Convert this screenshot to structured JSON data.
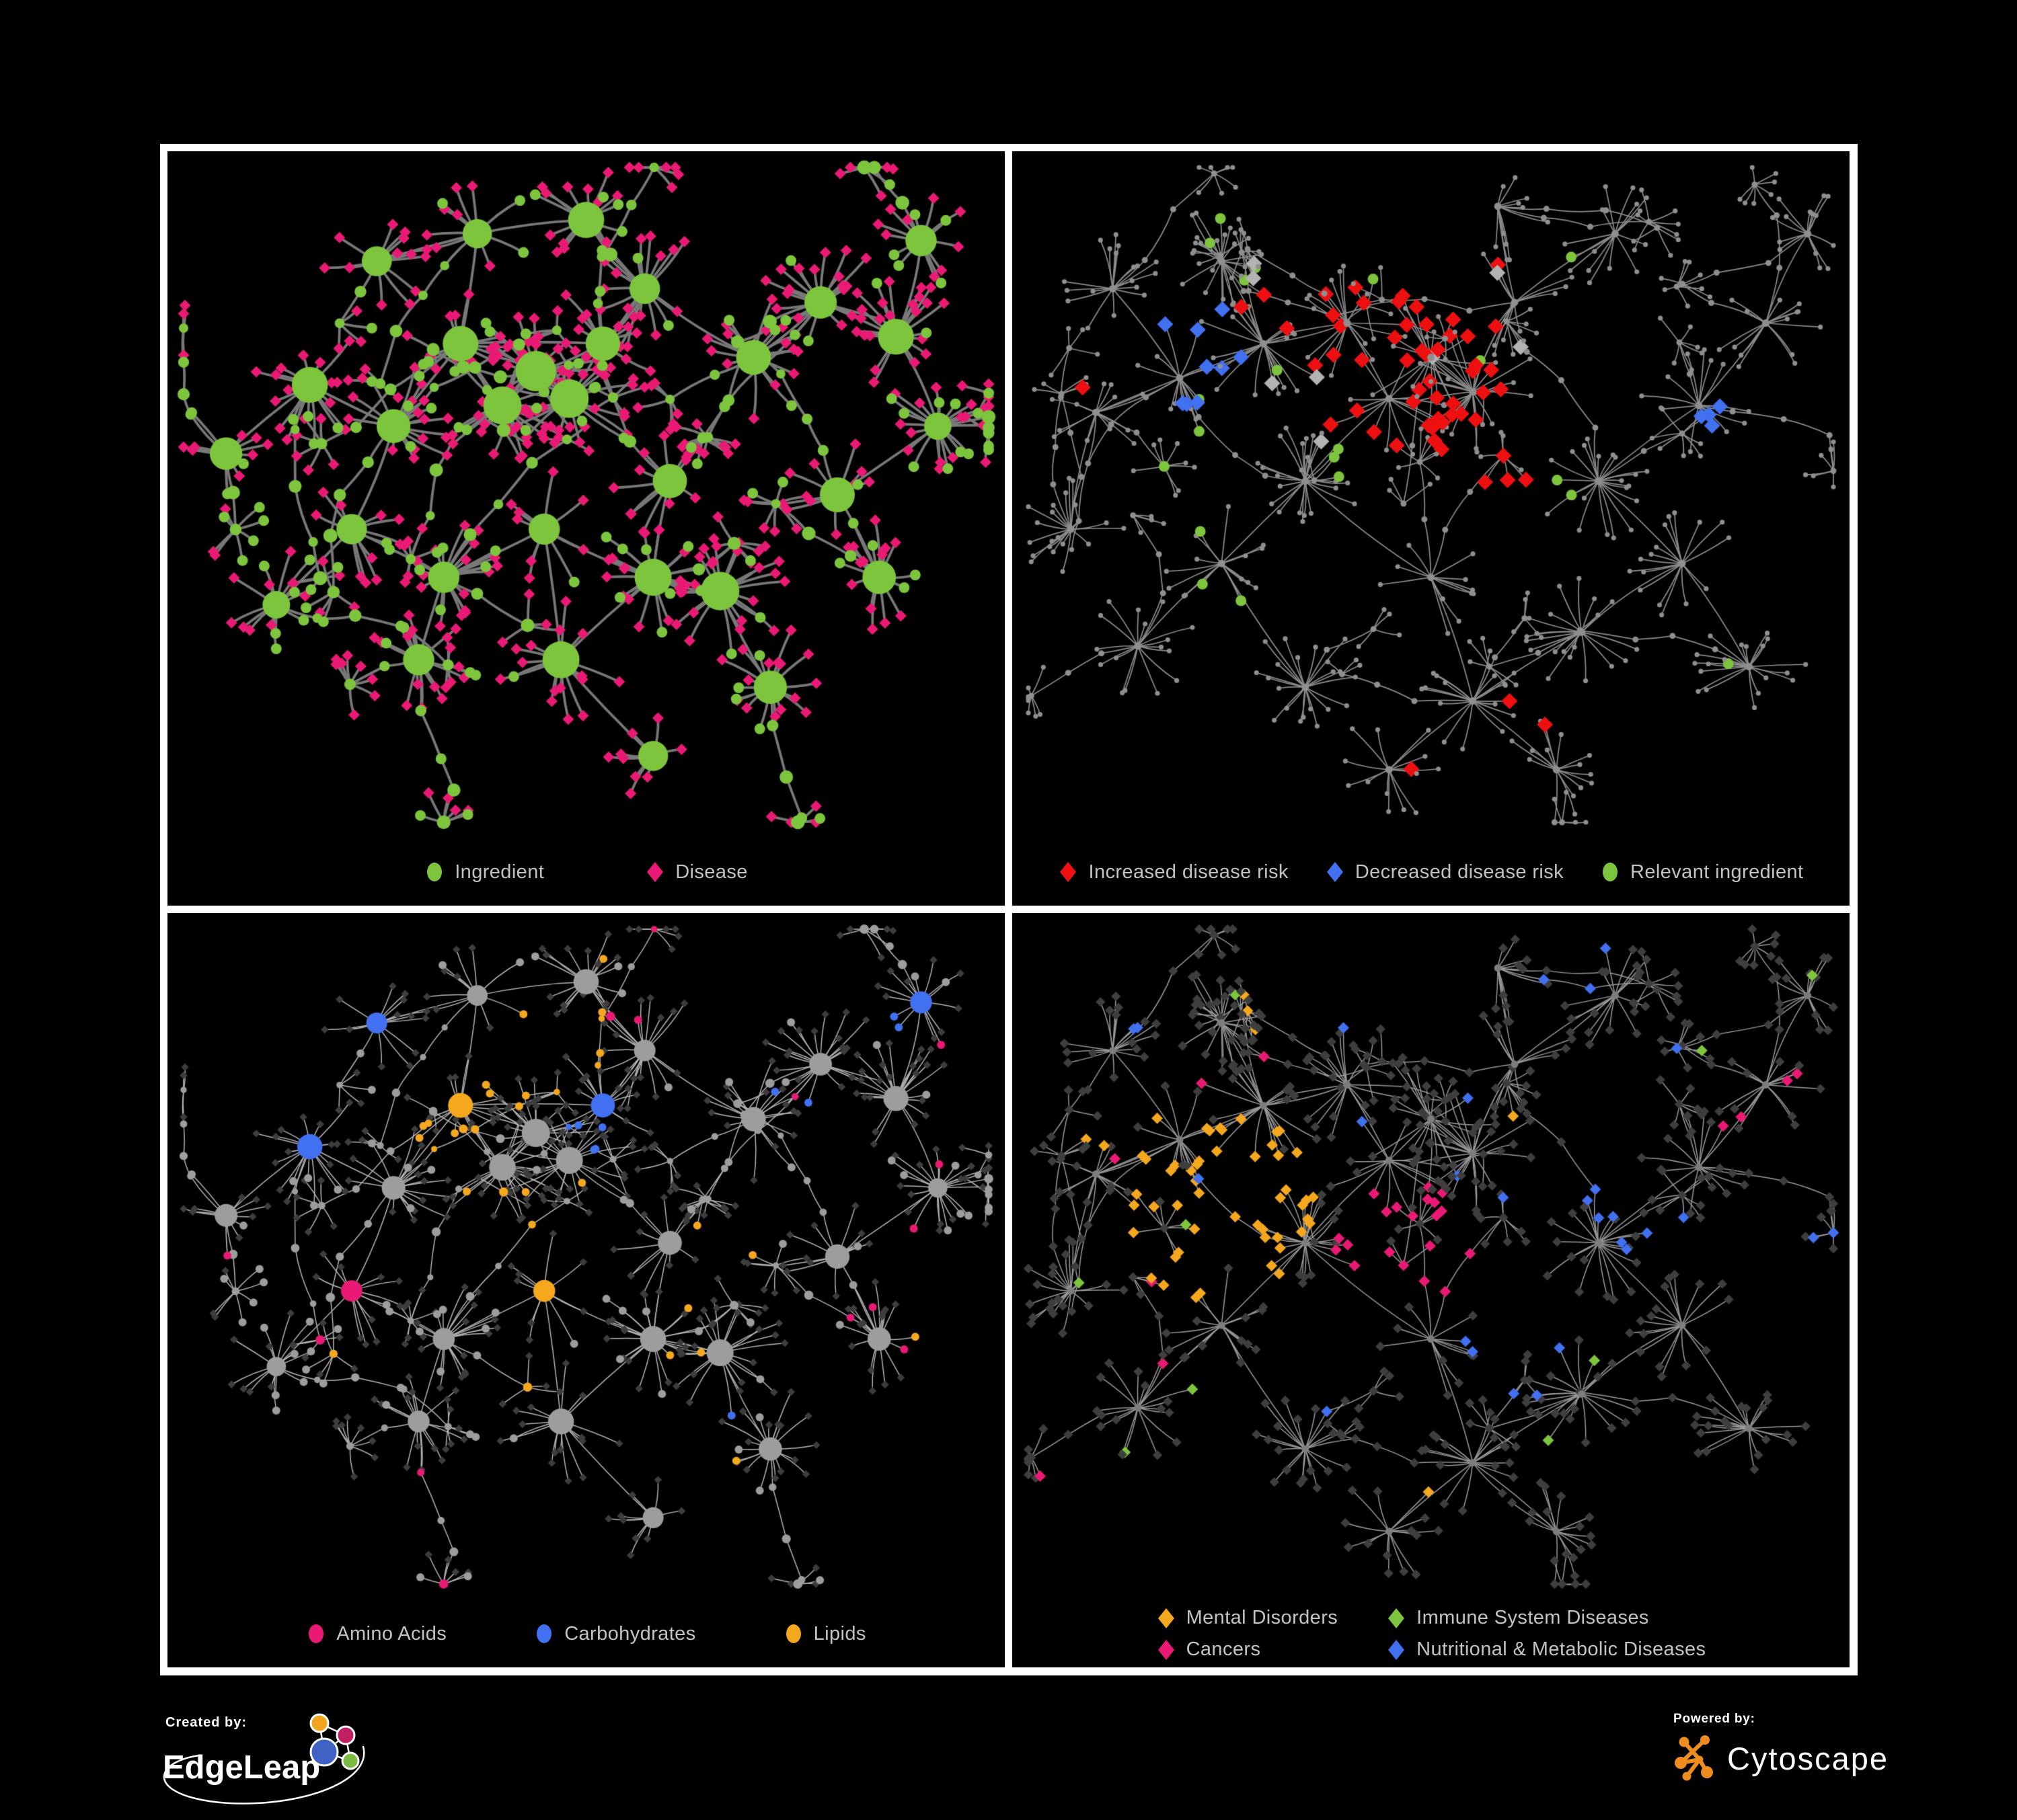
{
  "figure": {
    "background": "#000000",
    "panel_border_color": "#ffffff",
    "legend_text_color": "#c3c3c3"
  },
  "palette": {
    "green": "#7dc53c",
    "pink": "#ea1a74",
    "red": "#ee1010",
    "blue": "#4170f0",
    "orange": "#f5a71d",
    "gray_diamond": "#b3b3b3",
    "dark_diamond": "#3d3d3d",
    "gray_node": "#9d9d9d",
    "dot_gray": "#8f8f8f",
    "hub_gray": "#7d7d7d"
  },
  "network_style": {
    "top_left": {
      "edge_color": "#787878"
    },
    "top_right": {
      "edge_color": "#8d8d8d",
      "dot_color": "#8f8f8f",
      "neutral_diamond": "#b3b3b3"
    },
    "bottom_left": {
      "edge_color": "#b5b5b5",
      "neutral_circle": "#9d9d9d",
      "dark_diamond": "#3d3d3d"
    },
    "bottom_right": {
      "edge_color": "#9b9b9b",
      "dark_diamond": "#3e3e3e",
      "hub_dot": "#7d7d7d"
    }
  },
  "panels": {
    "top_left": {
      "name": "ingredient-disease-network",
      "legend": [
        {
          "label": "Ingredient",
          "shape": "circle",
          "color_key": "green"
        },
        {
          "label": "Disease",
          "shape": "diamond",
          "color_key": "pink"
        }
      ]
    },
    "top_right": {
      "name": "disease-risk-network",
      "legend": [
        {
          "label": "Increased disease risk",
          "shape": "diamond",
          "color_key": "red"
        },
        {
          "label": "Decreased disease risk",
          "shape": "diamond",
          "color_key": "blue"
        },
        {
          "label": "Relevant ingredient",
          "shape": "circle",
          "color_key": "green"
        }
      ]
    },
    "bottom_left": {
      "name": "ingredient-class-network",
      "legend": [
        {
          "label": "Amino Acids",
          "shape": "circle",
          "color_key": "pink"
        },
        {
          "label": "Carbohydrates",
          "shape": "circle",
          "color_key": "blue"
        },
        {
          "label": "Lipids",
          "shape": "circle",
          "color_key": "orange"
        }
      ]
    },
    "bottom_right": {
      "name": "disease-class-network",
      "legend_rows": [
        [
          {
            "label": "Mental Disorders",
            "shape": "diamond",
            "color_key": "orange"
          },
          {
            "label": "Immune System Diseases",
            "shape": "diamond",
            "color_key": "green"
          }
        ],
        [
          {
            "label": "Cancers",
            "shape": "diamond",
            "color_key": "pink"
          },
          {
            "label": "Nutritional & Metabolic Diseases",
            "shape": "diamond",
            "color_key": "blue"
          }
        ]
      ]
    }
  },
  "footer": {
    "created_by_label": "Created by:",
    "created_by_brand": "EdgeLeap",
    "powered_by_label": "Powered by:",
    "powered_by_brand": "Cytoscape",
    "cytoscape_orange": "#ef8c1e",
    "edgeleap_mark_colors": {
      "orange": "#f2a51f",
      "magenta": "#c21f63",
      "blue": "#3f62c4",
      "green": "#7abc43"
    }
  }
}
